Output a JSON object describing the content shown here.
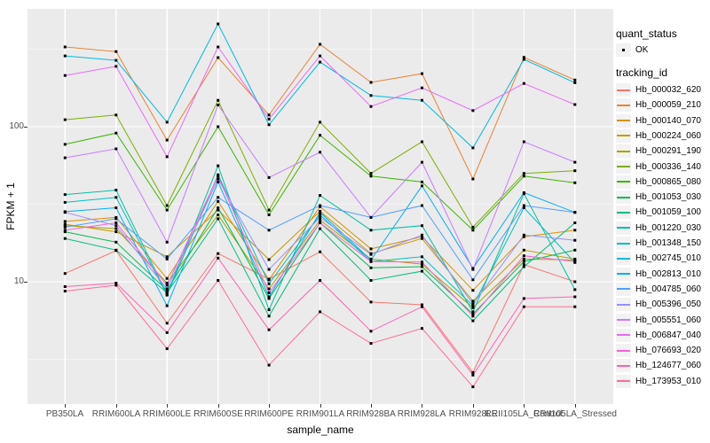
{
  "figure_title": "",
  "colors": {
    "panel_background": "#EBEBEB",
    "grid_major": "#FFFFFF",
    "grid_minor": "#F5F5F5",
    "legend_key_background": "#F2F2F2",
    "point_color": "#000000",
    "tick_label_color": "#4D4D4D",
    "tick_mark_color": "#333333"
  },
  "legend": {
    "quant_status_title": "quant_status",
    "quant_status_ok_label": "OK",
    "tracking_id_title": "tracking_id"
  },
  "chart_data": {
    "type": "line",
    "title": "",
    "xlabel": "sample_name",
    "ylabel": "FPKM + 1",
    "y_scale": "log10",
    "y_ticks": [
      100,
      10
    ],
    "y_minor_gridlines": [
      316.23,
      31.623,
      3.1623
    ],
    "y_range_approx": [
      1.6,
      575
    ],
    "grid": "white major and minor gridlines on gray panel",
    "legend_position": "right",
    "point_shape": "small black square (quant_status OK)",
    "categories": [
      "PB350LA",
      "RRIM600LA",
      "RRIM600LE",
      "RRIM600SE",
      "RRIM600PE",
      "RRIM901LA",
      "RRIM928BA",
      "RRIM928LA",
      "RRIM928LE",
      "RRII105LA_Control",
      "RRII105LA_Stressed"
    ],
    "series": [
      {
        "name": "Hb_000032_620",
        "color": "#F8766D",
        "values": [
          11.3,
          15.9,
          5.4,
          15.2,
          10.4,
          15.6,
          7.4,
          7.1,
          2.6,
          12.9,
          10.0
        ]
      },
      {
        "name": "Hb_000059_210",
        "color": "#EA8331",
        "values": [
          327,
          305,
          82,
          279,
          119,
          340,
          193,
          220,
          46,
          280,
          200
        ]
      },
      {
        "name": "Hb_000140_070",
        "color": "#D89000",
        "values": [
          24.5,
          26,
          10.5,
          33,
          10.3,
          30.5,
          16.3,
          19.5,
          8.8,
          19.5,
          21.5
        ]
      },
      {
        "name": "Hb_000224_060",
        "color": "#C49A00",
        "values": [
          23.5,
          21,
          14.5,
          29,
          13.9,
          28.5,
          15.2,
          19.0,
          7.5,
          16.0,
          14.0
        ]
      },
      {
        "name": "Hb_000291_190",
        "color": "#A3A500",
        "values": [
          23.0,
          22,
          9.8,
          27,
          9.0,
          25.0,
          14.0,
          13.0,
          6.8,
          14.0,
          13.8
        ]
      },
      {
        "name": "Hb_000336_140",
        "color": "#7CAE00",
        "values": [
          111,
          119,
          31,
          148,
          29,
          107,
          50,
          80,
          22.5,
          50,
          52
        ]
      },
      {
        "name": "Hb_000865_080",
        "color": "#39B600",
        "values": [
          77,
          91,
          29,
          100,
          27,
          88,
          48,
          44,
          21.5,
          48,
          43.5
        ]
      },
      {
        "name": "Hb_001053_030",
        "color": "#00BB4E",
        "values": [
          21,
          18,
          8.8,
          30,
          7.8,
          24,
          12.3,
          12.5,
          6.2,
          13.5,
          16
        ]
      },
      {
        "name": "Hb_001059_100",
        "color": "#00BF7D",
        "values": [
          19,
          16,
          8.5,
          25.5,
          6.0,
          22,
          10.2,
          11.7,
          5.6,
          12.5,
          24
        ]
      },
      {
        "name": "Hb_001220_030",
        "color": "#00C1A3",
        "values": [
          36.5,
          39,
          8.3,
          56,
          6.6,
          36,
          21.5,
          23,
          6.4,
          37,
          8.9
        ]
      },
      {
        "name": "Hb_001348_150",
        "color": "#00BFC4",
        "values": [
          32.5,
          35,
          8.2,
          49,
          9.7,
          27,
          13.5,
          14.5,
          7.0,
          30,
          13.3
        ]
      },
      {
        "name": "Hb_002745_010",
        "color": "#00BADE",
        "values": [
          286,
          268,
          107,
          460,
          103,
          261,
          159,
          148,
          73,
          272,
          192
        ]
      },
      {
        "name": "Hb_002813_010",
        "color": "#00AFF5",
        "values": [
          28.3,
          30,
          7.0,
          44,
          8.0,
          28,
          13.8,
          41.5,
          12.2,
          37.5,
          28
        ]
      },
      {
        "name": "Hb_004785_060",
        "color": "#529EFF",
        "values": [
          22.5,
          25.5,
          14.0,
          35,
          21.5,
          31,
          26,
          31,
          10.3,
          31,
          28
        ]
      },
      {
        "name": "Hb_005396_050",
        "color": "#9590FF",
        "values": [
          28.0,
          23,
          9.0,
          46,
          12,
          26,
          15,
          20,
          7.2,
          20,
          18.5
        ]
      },
      {
        "name": "Hb_005551_060",
        "color": "#C77CFF",
        "values": [
          63,
          72,
          18,
          138,
          47,
          68.5,
          26,
          59,
          12,
          80,
          59
        ]
      },
      {
        "name": "Hb_006847_040",
        "color": "#E76BF3",
        "values": [
          214,
          245,
          64,
          327,
          112,
          286,
          135,
          178,
          127,
          190,
          139
        ]
      },
      {
        "name": "Hb_076693_020",
        "color": "#FB61D7",
        "values": [
          21.5,
          24,
          9.5,
          48,
          8.5,
          24,
          13.5,
          13.4,
          6.0,
          14.7,
          13.5
        ]
      },
      {
        "name": "Hb_124677_060",
        "color": "#FF62B0",
        "values": [
          9.3,
          9.8,
          4.7,
          14.2,
          4.9,
          10.2,
          4.8,
          6.9,
          2.5,
          7.8,
          8.0
        ]
      },
      {
        "name": "Hb_173953_010",
        "color": "#FF6C91",
        "values": [
          8.7,
          9.5,
          3.7,
          10.2,
          2.9,
          6.4,
          4.0,
          5.0,
          2.1,
          6.9,
          6.9
        ]
      }
    ]
  }
}
